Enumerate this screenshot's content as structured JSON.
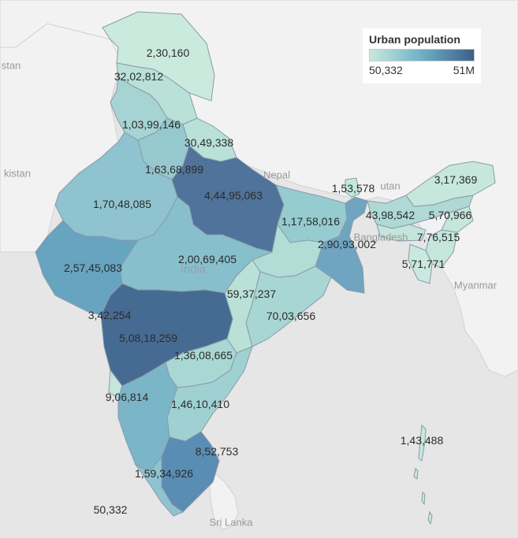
{
  "legend": {
    "title": "Urban population",
    "min_label": "50,332",
    "max_label": "51M",
    "min_value": 50332,
    "max_value": 51000000,
    "color_low": "#c9e9df",
    "color_high": "#3e5f88"
  },
  "countries": {
    "pakistan_top": "stan",
    "pakistan": "kistan",
    "nepal": "Nepal",
    "bhutan": "utan",
    "bangladesh": "Bangladesh",
    "myanmar": "Myanmar",
    "india": "India",
    "sri_lanka": "Sri Lanka"
  },
  "regions": [
    {
      "id": "jammu-kashmir",
      "label": "2,30,160",
      "value": 230160
    },
    {
      "id": "himachal-pradesh",
      "label": "32,02,812",
      "value": 3202812
    },
    {
      "id": "punjab",
      "label": "1,03,99,146",
      "value": 10399146
    },
    {
      "id": "uttarakhand",
      "label": "30,49,338",
      "value": 3049338
    },
    {
      "id": "haryana",
      "label": "1,63,68,899",
      "value": 16368899
    },
    {
      "id": "rajasthan",
      "label": "1,70,48,085",
      "value": 17048085
    },
    {
      "id": "uttar-pradesh",
      "label": "4,44,95,063",
      "value": 44495063
    },
    {
      "id": "sikkim",
      "label": "1,53,578",
      "value": 153578
    },
    {
      "id": "arunachal-pradesh",
      "label": "3,17,369",
      "value": 317369
    },
    {
      "id": "bihar",
      "label": "1,17,58,016",
      "value": 11758016
    },
    {
      "id": "assam",
      "label": "43,98,542",
      "value": 4398542
    },
    {
      "id": "nagaland",
      "label": "5,70,966",
      "value": 570966
    },
    {
      "id": "meghalaya",
      "label": "7,76,515",
      "value": 776515
    },
    {
      "id": "west-bengal",
      "label": "2,90,93,002",
      "value": 29093002
    },
    {
      "id": "manipur",
      "label": "5,71,771",
      "value": 571771
    },
    {
      "id": "madhya-pradesh",
      "label": "2,00,69,405",
      "value": 20069405
    },
    {
      "id": "gujarat",
      "label": "2,57,45,083",
      "value": 25745083
    },
    {
      "id": "jharkhand",
      "label": "59,37,237",
      "value": 5937237
    },
    {
      "id": "dadra-nagar-haveli",
      "label": "3,42,254",
      "value": 342254
    },
    {
      "id": "odisha",
      "label": "70,03,656",
      "value": 7003656
    },
    {
      "id": "maharashtra",
      "label": "5,08,18,259",
      "value": 50818259
    },
    {
      "id": "telangana",
      "label": "1,36,08,665",
      "value": 13608665
    },
    {
      "id": "goa",
      "label": "9,06,814",
      "value": 906814
    },
    {
      "id": "andhra-pradesh",
      "label": "1,46,10,410",
      "value": 14610410
    },
    {
      "id": "andaman-nicobar",
      "label": "1,43,488",
      "value": 143488
    },
    {
      "id": "puducherry",
      "label": "8,52,753",
      "value": 852753
    },
    {
      "id": "karnataka",
      "label": "1,59,34,926",
      "value": 15934926
    },
    {
      "id": "lakshadweep",
      "label": "50,332",
      "value": 50332
    }
  ]
}
